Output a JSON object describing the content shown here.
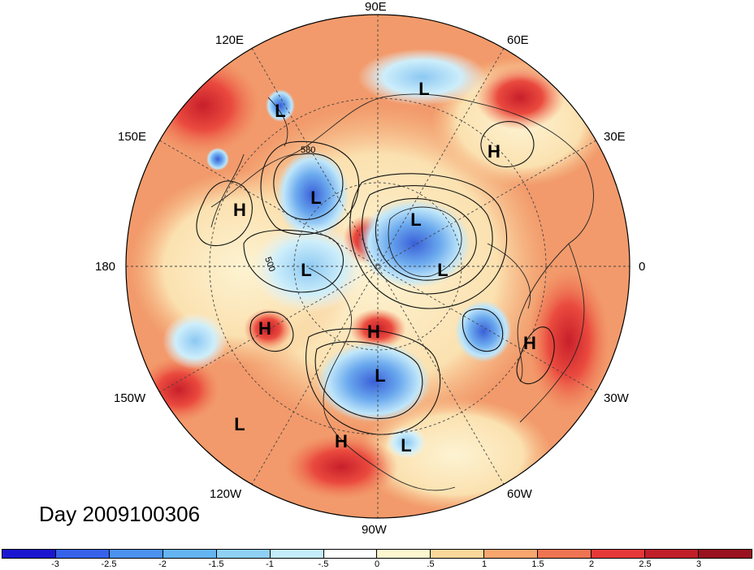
{
  "map": {
    "projection": "north-polar-stereographic",
    "longitude_labels": [
      {
        "id": "lon-90e",
        "text": "90E"
      },
      {
        "id": "lon-60e",
        "text": "60E"
      },
      {
        "id": "lon-30e",
        "text": "30E"
      },
      {
        "id": "lon-0",
        "text": "0"
      },
      {
        "id": "lon-30w",
        "text": "30W"
      },
      {
        "id": "lon-60w",
        "text": "60W"
      },
      {
        "id": "lon-90w",
        "text": "90W"
      },
      {
        "id": "lon-120w",
        "text": "120W"
      },
      {
        "id": "lon-150w",
        "text": "150W"
      },
      {
        "id": "lon-180",
        "text": "180"
      },
      {
        "id": "lon-150e",
        "text": "150E"
      },
      {
        "id": "lon-120e",
        "text": "120E"
      }
    ],
    "pressure_centers": [
      {
        "id": "center-l-1",
        "type": "L",
        "text": "L"
      },
      {
        "id": "center-l-2",
        "type": "L",
        "text": "L"
      },
      {
        "id": "center-h-1",
        "type": "H",
        "text": "H"
      },
      {
        "id": "center-l-3",
        "type": "L",
        "text": "L"
      },
      {
        "id": "center-h-2",
        "type": "H",
        "text": "H"
      },
      {
        "id": "center-l-4",
        "type": "L",
        "text": "L"
      },
      {
        "id": "center-l-5",
        "type": "L",
        "text": "L"
      },
      {
        "id": "center-l-6",
        "type": "L",
        "text": "L"
      },
      {
        "id": "center-h-3",
        "type": "H",
        "text": "H"
      },
      {
        "id": "center-h-4",
        "type": "H",
        "text": "H"
      },
      {
        "id": "center-h-5",
        "type": "H",
        "text": "H"
      },
      {
        "id": "center-l-7",
        "type": "L",
        "text": "L"
      },
      {
        "id": "center-l-8",
        "type": "L",
        "text": "L"
      },
      {
        "id": "center-h-6",
        "type": "H",
        "text": "H"
      },
      {
        "id": "center-l-9",
        "type": "L",
        "text": "L"
      }
    ],
    "contour_labels": [
      "580",
      "500"
    ]
  },
  "day_label": "Day 2009100306",
  "colorbar": {
    "colors": [
      "#1b17d0",
      "#3662ea",
      "#4b91ee",
      "#64b4f2",
      "#8fd0f5",
      "#c4ecfa",
      "#ffffff",
      "#fdf6cf",
      "#fbd79a",
      "#f7a66e",
      "#ef7452",
      "#e53838",
      "#c01f2a",
      "#9a1220"
    ],
    "tick_labels": [
      "-3",
      "-2.5",
      "-2",
      "-1.5",
      "-1",
      "-.5",
      "0",
      ".5",
      "1",
      "1.5",
      "2",
      "2.5",
      "3"
    ]
  }
}
